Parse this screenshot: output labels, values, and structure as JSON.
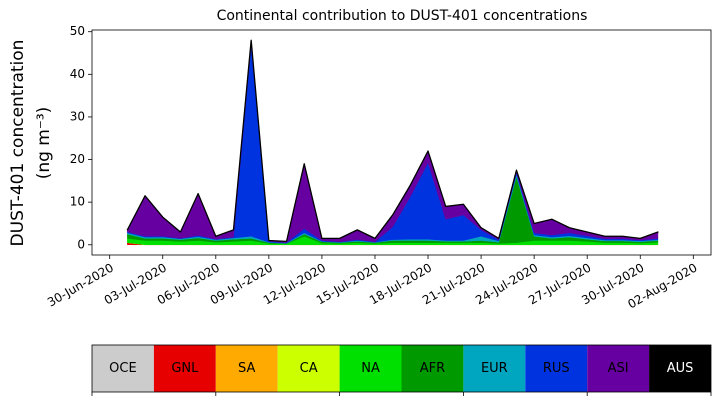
{
  "chart_data": {
    "type": "stacked-area",
    "title": "Continental contribution to DUST-401 concentrations",
    "ylabel": [
      "DUST-401 concentration",
      "(ng m⁻³)"
    ],
    "x": [
      "01-Jul-2020",
      "02-Jul-2020",
      "03-Jul-2020",
      "04-Jul-2020",
      "05-Jul-2020",
      "06-Jul-2020",
      "07-Jul-2020",
      "08-Jul-2020",
      "09-Jul-2020",
      "10-Jul-2020",
      "11-Jul-2020",
      "12-Jul-2020",
      "13-Jul-2020",
      "14-Jul-2020",
      "15-Jul-2020",
      "16-Jul-2020",
      "17-Jul-2020",
      "18-Jul-2020",
      "19-Jul-2020",
      "20-Jul-2020",
      "21-Jul-2020",
      "22-Jul-2020",
      "23-Jul-2020",
      "24-Jul-2020",
      "25-Jul-2020",
      "26-Jul-2020",
      "27-Jul-2020",
      "28-Jul-2020",
      "29-Jul-2020",
      "30-Jul-2020",
      "31-Jul-2020"
    ],
    "xlim": [
      "29-Jun-2020",
      "03-Aug-2020"
    ],
    "xticks": [
      "30-Jun-2020",
      "03-Jul-2020",
      "06-Jul-2020",
      "09-Jul-2020",
      "12-Jul-2020",
      "15-Jul-2020",
      "18-Jul-2020",
      "21-Jul-2020",
      "24-Jul-2020",
      "27-Jul-2020",
      "30-Jul-2020",
      "02-Aug-2020"
    ],
    "ylim": [
      -2.4,
      50.4
    ],
    "yticks": [
      0,
      10,
      20,
      30,
      40,
      50
    ],
    "series": [
      {
        "name": "OCE",
        "color": "#cccccc",
        "values": [
          0,
          0,
          0,
          0,
          0,
          0,
          0,
          0,
          0,
          0,
          0,
          0,
          0,
          0,
          0,
          0,
          0,
          0,
          0,
          0,
          0,
          0,
          0,
          0,
          0,
          0,
          0,
          0,
          0,
          0,
          0
        ]
      },
      {
        "name": "GNL",
        "color": "#e60000",
        "values": [
          0.5,
          0,
          0,
          0,
          0,
          0,
          0,
          0,
          0,
          0,
          0,
          0,
          0,
          0,
          0,
          0,
          0,
          0,
          0,
          0,
          0,
          0,
          0,
          0,
          0,
          0,
          0,
          0,
          0,
          0,
          0
        ]
      },
      {
        "name": "SA",
        "color": "#ffaa00",
        "values": [
          0,
          0,
          0,
          0,
          0,
          0,
          0,
          0,
          0,
          0,
          0,
          0,
          0,
          0,
          0,
          0,
          0,
          0,
          0,
          0,
          0,
          0,
          0,
          0,
          0,
          0,
          0,
          0,
          0,
          0,
          0
        ]
      },
      {
        "name": "CA",
        "color": "#ccff00",
        "values": [
          0,
          0,
          0,
          0,
          0,
          0,
          0,
          0,
          0,
          0,
          0,
          0,
          0,
          0,
          0,
          0,
          0,
          0,
          0,
          0,
          0,
          0,
          0,
          0,
          0,
          0,
          0,
          0,
          0,
          0,
          0
        ]
      },
      {
        "name": "NA",
        "color": "#00e000",
        "values": [
          1,
          1,
          1,
          0.8,
          1,
          0.6,
          0.8,
          1,
          0.3,
          0.2,
          2,
          0.4,
          0.3,
          0.5,
          0.3,
          0.5,
          0.5,
          0.5,
          0.5,
          0.5,
          0.5,
          0.3,
          0.5,
          1,
          1,
          1,
          0.8,
          0.5,
          0.5,
          0.4,
          0.6
        ]
      },
      {
        "name": "AFR",
        "color": "#009a00",
        "values": [
          1,
          0.5,
          0.5,
          0.4,
          0.6,
          0.4,
          0.5,
          0.5,
          0.2,
          0.1,
          0.5,
          0.3,
          0.2,
          0.3,
          0.2,
          0.5,
          0.5,
          0.5,
          0.3,
          0.3,
          0.5,
          0.3,
          15.5,
          1,
          0.5,
          0.8,
          0.5,
          0.4,
          0.4,
          0.3,
          0.4
        ]
      },
      {
        "name": "EUR",
        "color": "#00a6c0",
        "values": [
          0.3,
          0.3,
          0.3,
          0.2,
          0.3,
          0.2,
          0.3,
          0.5,
          0.1,
          0.1,
          0.3,
          0.1,
          0.1,
          0.2,
          0.1,
          0.2,
          0.3,
          0.3,
          0.2,
          0.2,
          1,
          0.3,
          0.5,
          0.3,
          0.3,
          0.3,
          0.3,
          0.2,
          0.2,
          0.2,
          0.2
        ]
      },
      {
        "name": "RUS",
        "color": "#0033e0",
        "values": [
          0.2,
          0.2,
          0.2,
          0.1,
          0.3,
          0.1,
          0.2,
          45,
          0.2,
          0.1,
          1,
          0.2,
          0.1,
          0.2,
          0.1,
          3,
          10,
          18,
          5,
          6,
          1.5,
          0.3,
          0.5,
          0.5,
          0.5,
          0.7,
          0.5,
          0.3,
          0.3,
          0.2,
          0.3
        ]
      },
      {
        "name": "ASI",
        "color": "#6600a0",
        "values": [
          0.5,
          9.5,
          4.5,
          1.5,
          9.8,
          0.7,
          1.7,
          1,
          0.2,
          0.3,
          15.2,
          0.5,
          0.8,
          2.3,
          0.8,
          2.8,
          2.7,
          2.7,
          3,
          2.5,
          0.5,
          0.3,
          0.5,
          2.2,
          3.7,
          1.2,
          0.9,
          0.6,
          0.6,
          0.4,
          1.5
        ]
      },
      {
        "name": "AUS",
        "color": "#000000",
        "values": [
          0,
          0,
          0,
          0,
          0,
          0,
          0,
          0,
          0,
          0,
          0,
          0,
          0,
          0,
          0,
          0,
          0,
          0,
          0,
          0,
          0,
          0,
          0,
          0,
          0,
          0,
          0,
          0,
          0,
          0,
          0
        ]
      }
    ]
  }
}
